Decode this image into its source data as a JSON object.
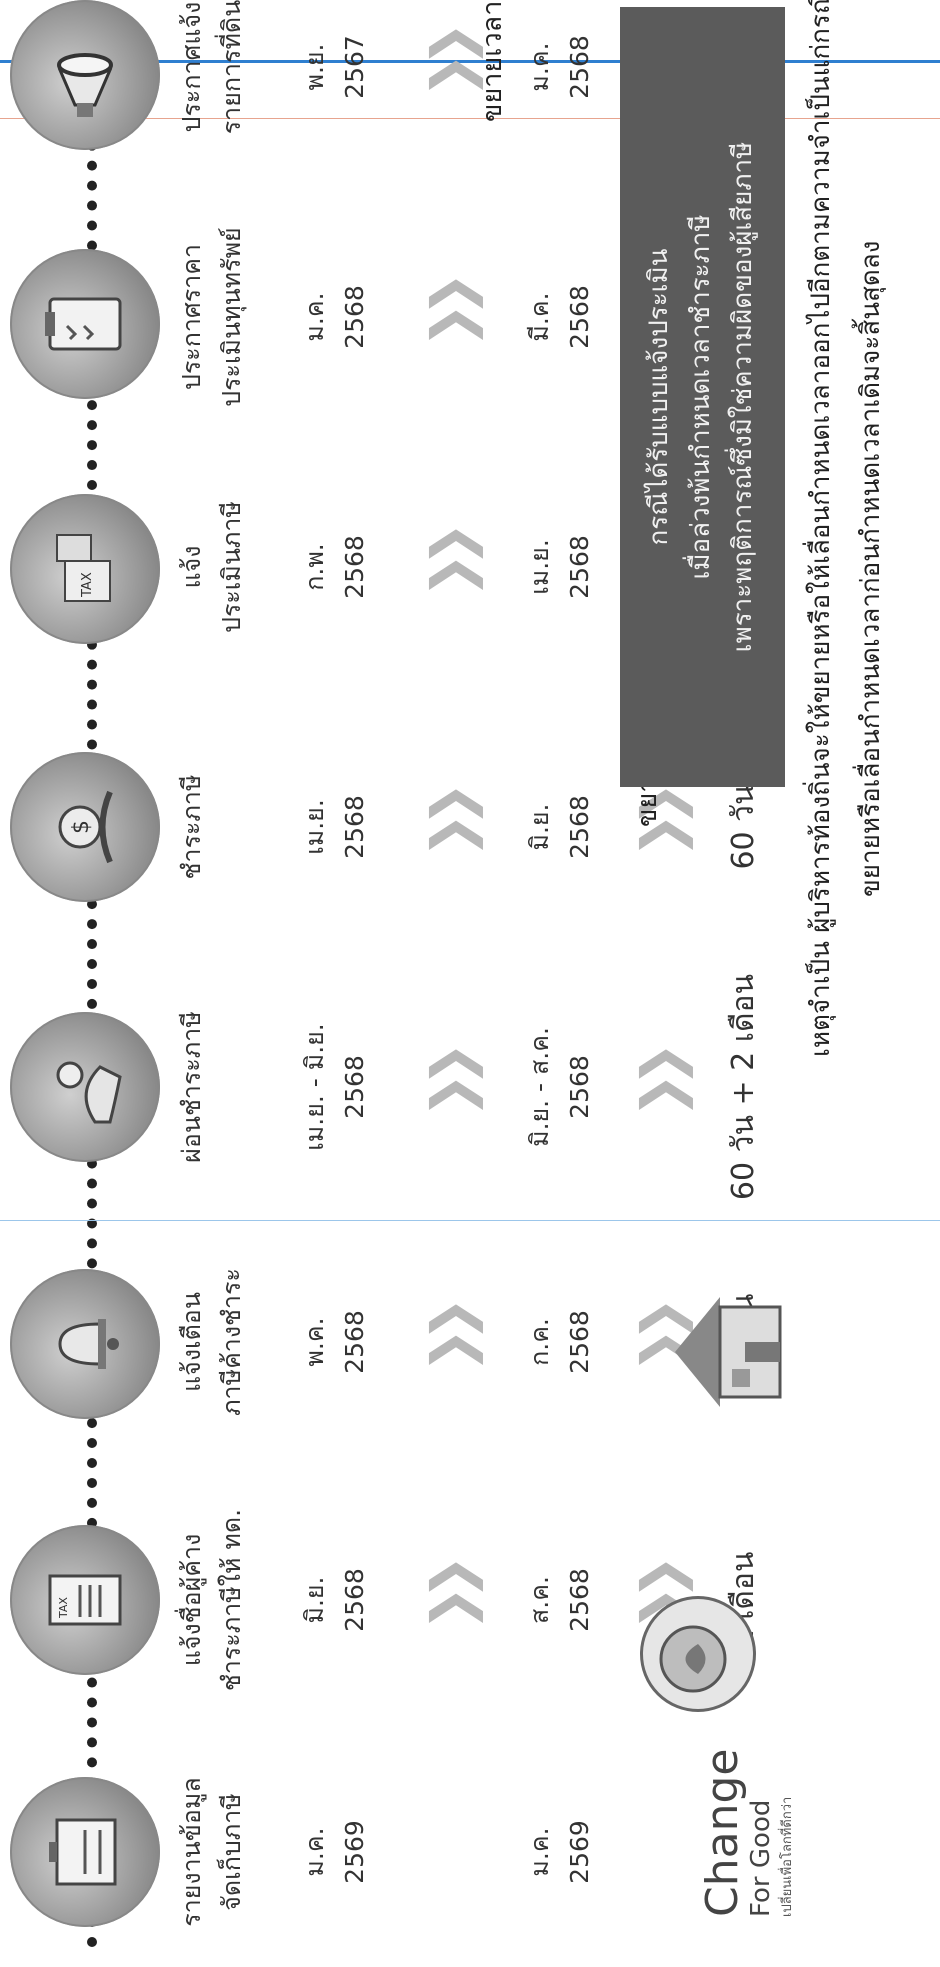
{
  "steps": [
    {
      "title1": "ประกาศแจ้ง",
      "title2": "รายการที่ดิน",
      "icon": "megaphone-icon"
    },
    {
      "title1": "ประกาศราคา",
      "title2": "ประเมินทุนทรัพย์",
      "icon": "clipboard-icon"
    },
    {
      "title1": "แจ้ง",
      "title2": "ประเมินภาษี",
      "icon": "tax-calculator-icon"
    },
    {
      "title1": "ชำระภาษี",
      "title2": "",
      "icon": "money-hand-icon"
    },
    {
      "title1": "ผ่อนชำระภาษี",
      "title2": "",
      "icon": "hand-coin-icon"
    },
    {
      "title1": "แจ้งเตือน",
      "title2": "ภาษีค้างชำระ",
      "icon": "bell-icon"
    },
    {
      "title1": "แจ้งชื่อผู้ค้าง",
      "title2": "ชำระภาษีให้ ทด.",
      "icon": "tax-form-icon"
    },
    {
      "title1": "รายงานข้อมูล",
      "title2": "จัดเก็บภาษี",
      "icon": "battery-report-icon"
    }
  ],
  "original": [
    {
      "m": "พ.ย.",
      "y": "2567"
    },
    {
      "m": "ม.ค.",
      "y": "2568"
    },
    {
      "m": "ก.พ.",
      "y": "2568"
    },
    {
      "m": "เม.ย.",
      "y": "2568"
    },
    {
      "m": "เม.ย. - มิ.ย.",
      "y": "2568"
    },
    {
      "m": "พ.ค.",
      "y": "2568"
    },
    {
      "m": "มิ.ย.",
      "y": "2568"
    },
    {
      "m": "ม.ค.",
      "y": "2569"
    }
  ],
  "extended": [
    {
      "m": "ม.ค.",
      "y": "2568"
    },
    {
      "m": "มี.ค.",
      "y": "2568"
    },
    {
      "m": "เม.ย.",
      "y": "2568"
    },
    {
      "m": "มิ.ย.",
      "y": "2568"
    },
    {
      "m": "มิ.ย. - ส.ค.",
      "y": "2568"
    },
    {
      "m": "ก.ค.",
      "y": "2568"
    },
    {
      "m": "ส.ค.",
      "y": "2568"
    },
    {
      "m": "ม.ค.",
      "y": "2569"
    }
  ],
  "durations": [
    "60 วัน",
    "60 วัน + 2 เดือน",
    "1 เดือน",
    "1 เดือน"
  ],
  "extend_label_left": "ขยายเวลา",
  "extend_label_mid": "ขยายเวลา",
  "box_lines": [
    "กรณีได้รับแบบแจ้งประเมิน",
    "เมื่อล่วงพ้นกำหนดเวลาชำระภาษี",
    "เพราะพฤติการณ์ซึ่งมิใช่ความผิดของผู้เสียภาษี"
  ],
  "footnote1": "เหตุจำเป็น  ผู้บริหารท้องถิ่นจะให้ขยายหรือให้เลื่อนกำหนดเวลาออกไปอีกตามความจำเป็นแก่กรณีก็ได้",
  "footnote2": "ขยายหรือเลื่อนกำหนดเวลาก่อนกำหนดเวลาเดิมจะสิ้นสุดลง",
  "chevron": "❯❯",
  "logo_change": "Change",
  "logo_forgood": "For Good",
  "logo_tagline": "เปลี่ยนเพื่อโลกที่ดีกว่า"
}
